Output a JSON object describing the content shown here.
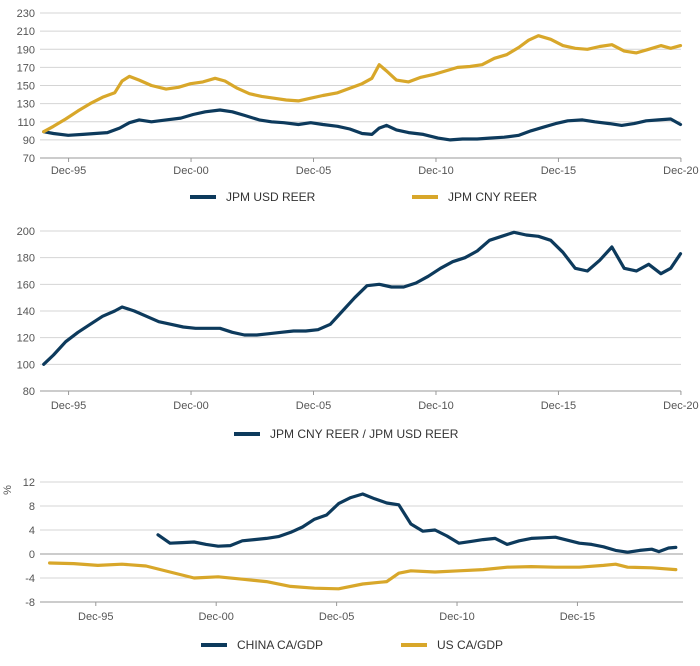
{
  "colors": {
    "navy": "#0d3a5c",
    "gold": "#d8a72a",
    "grid": "#d4d4d4",
    "axis": "#999999"
  },
  "chart_data": [
    {
      "type": "line",
      "x_ticks": [
        "Dec-95",
        "Dec-00",
        "Dec-05",
        "Dec-10",
        "Dec-15",
        "Dec-20"
      ],
      "ylim": [
        70,
        230
      ],
      "y_ticks": [
        70,
        90,
        110,
        130,
        150,
        170,
        190,
        210,
        230
      ],
      "grid": "horizontal",
      "legend_position": "bottom",
      "series": [
        {
          "name": "JPM USD REER",
          "color": "#0d3a5c",
          "x": [
            1994.9,
            1995.3,
            1995.9,
            1996.5,
            1997.0,
            1997.5,
            1998.0,
            1998.4,
            1998.8,
            1999.3,
            1999.9,
            2000.5,
            2001.0,
            2001.5,
            2002.1,
            2002.6,
            2003.1,
            2003.7,
            2004.2,
            2004.7,
            2005.3,
            2005.8,
            2006.3,
            2006.9,
            2007.4,
            2007.9,
            2008.3,
            2008.6,
            2008.9,
            2009.3,
            2009.8,
            2010.4,
            2011.0,
            2011.5,
            2012.0,
            2012.6,
            2013.1,
            2013.7,
            2014.3,
            2014.8,
            2015.3,
            2015.8,
            2016.3,
            2016.9,
            2017.4,
            2018.0,
            2018.5,
            2019.0,
            2019.5,
            2020.0,
            2020.5,
            2020.9
          ],
          "values": [
            99,
            97,
            95,
            96,
            97,
            98,
            103,
            109,
            112,
            110,
            112,
            114,
            118,
            121,
            123,
            121,
            117,
            112,
            110,
            109,
            107,
            109,
            107,
            105,
            102,
            97,
            96,
            103,
            106,
            101,
            98,
            96,
            92,
            90,
            91,
            91,
            92,
            93,
            95,
            100,
            104,
            108,
            111,
            112,
            110,
            108,
            106,
            108,
            111,
            112,
            113,
            107
          ]
        },
        {
          "name": "JPM CNY REER",
          "color": "#d8a72a",
          "x": [
            1994.9,
            1995.3,
            1995.8,
            1996.3,
            1996.8,
            1997.3,
            1997.8,
            1998.1,
            1998.4,
            1998.8,
            1999.3,
            1999.9,
            2000.4,
            2000.9,
            2001.4,
            2001.9,
            2002.3,
            2002.8,
            2003.3,
            2003.8,
            2004.3,
            2004.8,
            2005.3,
            2005.8,
            2006.3,
            2006.9,
            2007.4,
            2007.9,
            2008.3,
            2008.6,
            2008.9,
            2009.3,
            2009.8,
            2010.3,
            2010.8,
            2011.3,
            2011.8,
            2012.3,
            2012.8,
            2013.3,
            2013.8,
            2014.3,
            2014.7,
            2015.1,
            2015.6,
            2016.1,
            2016.6,
            2017.1,
            2017.6,
            2018.1,
            2018.6,
            2019.1,
            2019.6,
            2020.1,
            2020.5,
            2020.9
          ],
          "values": [
            99,
            105,
            113,
            122,
            130,
            137,
            142,
            155,
            160,
            156,
            150,
            146,
            148,
            152,
            154,
            158,
            155,
            147,
            141,
            138,
            136,
            134,
            133,
            136,
            139,
            142,
            147,
            152,
            158,
            173,
            166,
            156,
            154,
            159,
            162,
            166,
            170,
            171,
            173,
            180,
            184,
            192,
            200,
            205,
            201,
            194,
            191,
            190,
            193,
            195,
            188,
            186,
            190,
            194,
            191,
            194
          ]
        }
      ]
    },
    {
      "type": "line",
      "x_ticks": [
        "Dec-95",
        "Dec-00",
        "Dec-05",
        "Dec-10",
        "Dec-15",
        "Dec-20"
      ],
      "ylim": [
        80,
        200
      ],
      "y_ticks": [
        80,
        100,
        120,
        140,
        160,
        180,
        200
      ],
      "grid": "horizontal",
      "legend_position": "bottom",
      "series": [
        {
          "name": "JPM CNY REER / JPM USD REER",
          "color": "#0d3a5c",
          "x": [
            1994.9,
            1995.3,
            1995.8,
            1996.3,
            1996.8,
            1997.3,
            1997.8,
            1998.1,
            1998.6,
            1999.1,
            1999.6,
            2000.1,
            2000.6,
            2001.1,
            2001.6,
            2002.1,
            2002.6,
            2003.1,
            2003.6,
            2004.1,
            2004.6,
            2005.1,
            2005.6,
            2006.1,
            2006.6,
            2007.1,
            2007.6,
            2008.1,
            2008.6,
            2009.1,
            2009.6,
            2010.1,
            2010.6,
            2011.1,
            2011.6,
            2012.1,
            2012.6,
            2013.1,
            2013.6,
            2014.1,
            2014.6,
            2015.1,
            2015.6,
            2016.1,
            2016.6,
            2017.1,
            2017.6,
            2018.1,
            2018.6,
            2019.1,
            2019.6,
            2020.1,
            2020.5,
            2020.9
          ],
          "values": [
            100,
            107,
            117,
            124,
            130,
            136,
            140,
            143,
            140,
            136,
            132,
            130,
            128,
            127,
            127,
            127,
            124,
            122,
            122,
            123,
            124,
            125,
            125,
            126,
            130,
            140,
            150,
            159,
            160,
            158,
            158,
            161,
            166,
            172,
            177,
            180,
            185,
            193,
            196,
            199,
            197,
            196,
            193,
            184,
            172,
            170,
            178,
            188,
            172,
            170,
            175,
            168,
            172,
            183
          ]
        }
      ]
    },
    {
      "type": "line",
      "x_ticks": [
        "Dec-95",
        "Dec-00",
        "Dec-05",
        "Dec-10",
        "Dec-15"
      ],
      "ylim": [
        -8,
        12
      ],
      "y_ticks": [
        -8,
        -4,
        0,
        4,
        8,
        12
      ],
      "ylabel": "%",
      "grid": "horizontal",
      "legend_position": "bottom",
      "series": [
        {
          "name": "CHINA CA/GDP",
          "color": "#0d3a5c",
          "x": [
            1998.5,
            1999.0,
            1999.5,
            2000.0,
            2000.5,
            2001.0,
            2001.5,
            2002.0,
            2002.5,
            2003.0,
            2003.5,
            2004.0,
            2004.5,
            2005.0,
            2005.5,
            2006.0,
            2006.5,
            2007.0,
            2007.5,
            2008.0,
            2008.5,
            2009.0,
            2009.5,
            2010.0,
            2010.5,
            2011.0,
            2011.5,
            2012.0,
            2012.5,
            2013.0,
            2013.5,
            2014.0,
            2014.5,
            2015.0,
            2015.5,
            2016.0,
            2016.5,
            2017.0,
            2017.5,
            2018.0,
            2018.5,
            2019.0,
            2019.3,
            2019.7,
            2020.0
          ],
          "values": [
            3.2,
            1.8,
            1.9,
            2.0,
            1.6,
            1.3,
            1.4,
            2.2,
            2.4,
            2.6,
            2.9,
            3.6,
            4.5,
            5.8,
            6.5,
            8.4,
            9.4,
            10.0,
            9.2,
            8.5,
            8.2,
            5.0,
            3.8,
            4.0,
            3.0,
            1.8,
            2.1,
            2.4,
            2.6,
            1.6,
            2.2,
            2.6,
            2.7,
            2.8,
            2.3,
            1.8,
            1.6,
            1.2,
            0.6,
            0.3,
            0.6,
            0.8,
            0.4,
            1.0,
            1.1
          ]
        },
        {
          "name": "US CA/GDP",
          "color": "#d8a72a",
          "x": [
            1994.0,
            1995.0,
            1996.0,
            1997.0,
            1998.0,
            1999.0,
            2000.0,
            2001.0,
            2002.0,
            2003.0,
            2004.0,
            2005.0,
            2006.0,
            2007.0,
            2008.0,
            2008.5,
            2009.0,
            2010.0,
            2011.0,
            2012.0,
            2013.0,
            2014.0,
            2015.0,
            2016.0,
            2017.0,
            2017.5,
            2018.0,
            2019.0,
            2020.0
          ],
          "values": [
            -1.5,
            -1.6,
            -1.9,
            -1.7,
            -2.0,
            -3.0,
            -4.0,
            -3.8,
            -4.2,
            -4.6,
            -5.4,
            -5.7,
            -5.8,
            -5.0,
            -4.6,
            -3.2,
            -2.8,
            -3.0,
            -2.8,
            -2.6,
            -2.2,
            -2.1,
            -2.2,
            -2.2,
            -1.9,
            -1.7,
            -2.2,
            -2.3,
            -2.6
          ]
        }
      ]
    }
  ]
}
